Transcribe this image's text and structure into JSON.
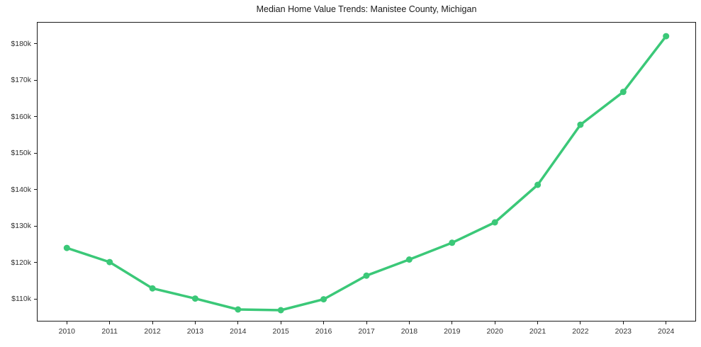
{
  "figure": {
    "title": "Median Home Value Trends: Manistee County, Michigan"
  },
  "chart_data": {
    "type": "line",
    "title": "Median Home Value Trends: Manistee County, Michigan",
    "xlabel": "",
    "ylabel": "",
    "x": [
      2010,
      2011,
      2012,
      2013,
      2014,
      2015,
      2016,
      2017,
      2018,
      2019,
      2020,
      2021,
      2022,
      2023,
      2024
    ],
    "values": [
      124000,
      120100,
      112900,
      110100,
      107100,
      106900,
      109900,
      116400,
      120800,
      125400,
      131000,
      141300,
      157800,
      166800,
      182100
    ],
    "xlim": [
      2009.3,
      2024.7
    ],
    "ylim": [
      103800,
      186000
    ],
    "x_ticks": [
      {
        "value": 2010,
        "label": "2010"
      },
      {
        "value": 2011,
        "label": "2011"
      },
      {
        "value": 2012,
        "label": "2012"
      },
      {
        "value": 2013,
        "label": "2013"
      },
      {
        "value": 2014,
        "label": "2014"
      },
      {
        "value": 2015,
        "label": "2015"
      },
      {
        "value": 2016,
        "label": "2016"
      },
      {
        "value": 2017,
        "label": "2017"
      },
      {
        "value": 2018,
        "label": "2018"
      },
      {
        "value": 2019,
        "label": "2019"
      },
      {
        "value": 2020,
        "label": "2020"
      },
      {
        "value": 2021,
        "label": "2021"
      },
      {
        "value": 2022,
        "label": "2022"
      },
      {
        "value": 2023,
        "label": "2023"
      },
      {
        "value": 2024,
        "label": "2024"
      }
    ],
    "y_ticks": [
      {
        "value": 110000,
        "label": "$110k"
      },
      {
        "value": 120000,
        "label": "$120k"
      },
      {
        "value": 130000,
        "label": "$130k"
      },
      {
        "value": 140000,
        "label": "$140k"
      },
      {
        "value": 150000,
        "label": "$150k"
      },
      {
        "value": 160000,
        "label": "$160k"
      },
      {
        "value": 170000,
        "label": "$170k"
      },
      {
        "value": 180000,
        "label": "$180k"
      }
    ],
    "grid": false,
    "legend": false,
    "line_color": "#3bc878",
    "marker": "circle",
    "marker_color": "#3bc878"
  },
  "colors": {
    "background": "#ffffff",
    "axis": "#1a1a1a",
    "tick_label": "#333333",
    "title": "#1a1a1a"
  }
}
